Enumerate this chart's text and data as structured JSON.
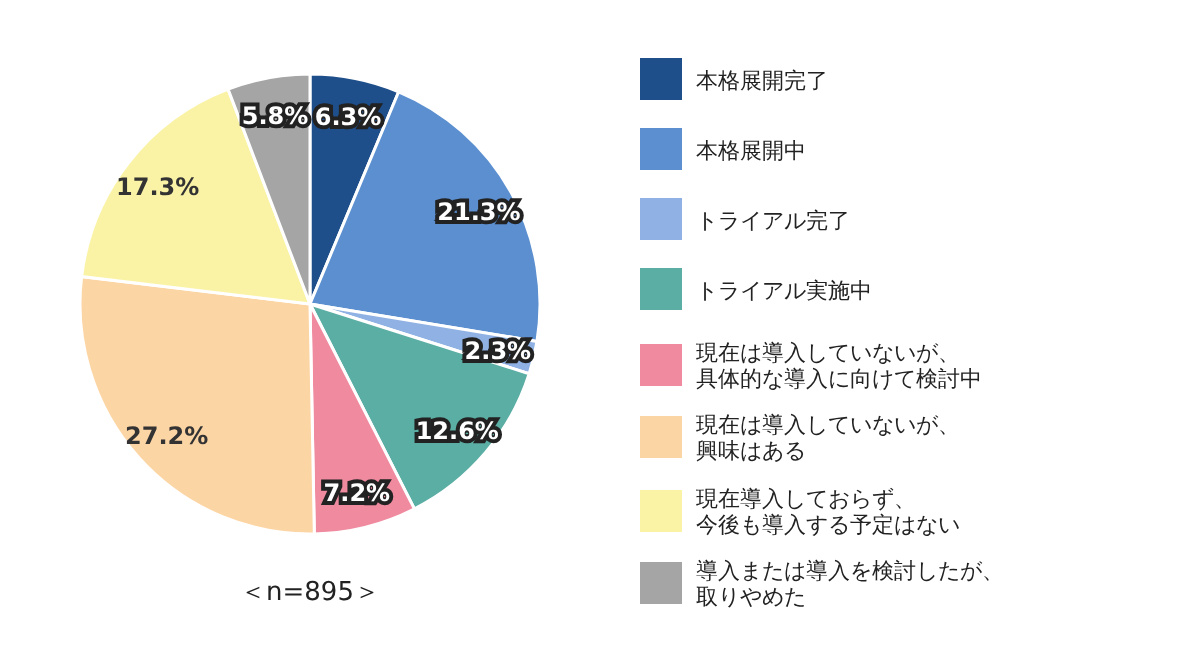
{
  "chart_data": {
    "type": "pie",
    "legend": "right",
    "annotations": [
      "＜n=895＞"
    ],
    "categories": [
      "本格展開完了",
      "本格展開中",
      "トライアル完了",
      "トライアル実施中",
      "現在は導入していないが、具体的な導入に向けて検討中",
      "現在は導入していないが、興味はある",
      "現在導入しておらず、今後も導入する予定はない",
      "導入または導入を検討したが、取りやめた"
    ],
    "values": [
      6.3,
      21.3,
      2.3,
      12.6,
      7.2,
      27.2,
      17.3,
      5.8
    ],
    "value_labels": [
      "6.3%",
      "21.3%",
      "2.3%",
      "12.6%",
      "7.2%",
      "27.2%",
      "17.3%",
      "5.8%"
    ],
    "colors": [
      "#1f4f8b",
      "#5b8fd0",
      "#8fb1e3",
      "#5aaea4",
      "#ef8a9f",
      "#fcd5a5",
      "#faf3a6",
      "#a5a5a5"
    ]
  }
}
